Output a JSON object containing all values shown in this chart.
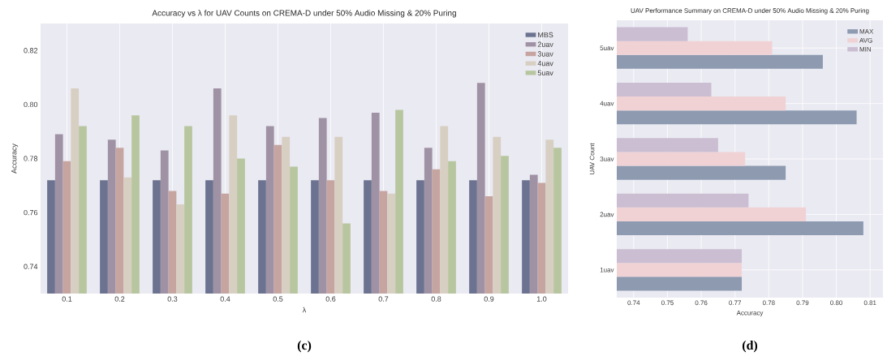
{
  "chart_data": [
    {
      "type": "bar",
      "title": "Accuracy vs λ for UAV Counts on CREMA-D under 50% Audio Missing & 20% Puring",
      "xlabel": "λ",
      "ylabel": "Accuracy",
      "categories": [
        "0.1",
        "0.2",
        "0.3",
        "0.4",
        "0.5",
        "0.6",
        "0.7",
        "0.8",
        "0.9",
        "1.0"
      ],
      "series": [
        {
          "name": "MBS",
          "color": "#6b7390",
          "values": [
            0.772,
            0.772,
            0.772,
            0.772,
            0.772,
            0.772,
            0.772,
            0.772,
            0.772,
            0.772
          ]
        },
        {
          "name": "2uav",
          "color": "#a092a5",
          "values": [
            0.789,
            0.787,
            0.783,
            0.806,
            0.792,
            0.795,
            0.797,
            0.784,
            0.808,
            0.774
          ]
        },
        {
          "name": "3uav",
          "color": "#c6a5a1",
          "values": [
            0.779,
            0.784,
            0.768,
            0.767,
            0.785,
            0.772,
            0.768,
            0.776,
            0.766,
            0.771
          ]
        },
        {
          "name": "4uav",
          "color": "#d8cfc3",
          "values": [
            0.806,
            0.773,
            0.763,
            0.796,
            0.788,
            0.788,
            0.767,
            0.792,
            0.788,
            0.787
          ]
        },
        {
          "name": "5uav",
          "color": "#b8c6a0",
          "values": [
            0.792,
            0.796,
            0.792,
            0.78,
            0.777,
            0.756,
            0.798,
            0.779,
            0.781,
            0.784
          ]
        }
      ],
      "ylim": [
        0.73,
        0.83
      ],
      "yticks": [
        0.74,
        0.76,
        0.78,
        {
          "value": 0.8,
          "label": "0.80"
        },
        0.82
      ],
      "grid": "x",
      "legend": "top right",
      "annotations": [
        "(c)"
      ]
    },
    {
      "type": "bar",
      "orientation": "horizontal",
      "title": "UAV Performance Summary on CREMA-D under 50% Audio Missing & 20% Puring",
      "xlabel": "Accuracy",
      "ylabel": "UAV Count",
      "categories": [
        "5uav",
        "4uav",
        "3uav",
        "2uav",
        "1uav"
      ],
      "series": [
        {
          "name": "MAX",
          "color": "#8d9ab0",
          "values": [
            0.796,
            0.806,
            0.785,
            0.808,
            0.772
          ]
        },
        {
          "name": "AVG",
          "color": "#f0d2d5",
          "values": [
            0.781,
            0.785,
            0.773,
            0.791,
            0.772
          ]
        },
        {
          "name": "MIN",
          "color": "#cbbed2",
          "values": [
            0.756,
            0.763,
            0.765,
            0.774,
            0.772
          ]
        }
      ],
      "xlim": [
        0.735,
        0.8138
      ],
      "xticks": [
        0.74,
        0.75,
        0.76,
        0.77,
        0.78,
        0.79,
        {
          "value": 0.8,
          "label": "0.80"
        },
        0.81
      ],
      "grid": true,
      "legend": "top right",
      "annotations": [
        "(d)"
      ]
    }
  ]
}
